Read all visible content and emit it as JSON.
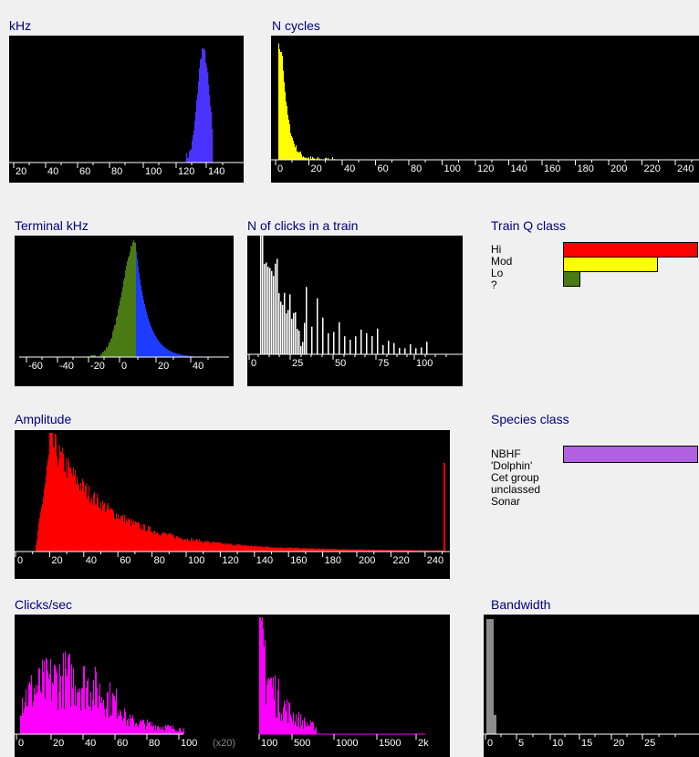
{
  "panels": {
    "khz": {
      "title": "kHz",
      "ticks": [
        "20",
        "40",
        "60",
        "80",
        "100",
        "120",
        "140"
      ]
    },
    "ncycles": {
      "title": "N cycles",
      "ticks": [
        "0",
        "20",
        "40",
        "60",
        "80",
        "100",
        "120",
        "140",
        "160",
        "180",
        "200",
        "220",
        "240"
      ]
    },
    "terminal_khz": {
      "title": "Terminal kHz",
      "ticks": [
        "-60",
        "-40",
        "-20",
        "0",
        "20",
        "40"
      ]
    },
    "nclicks": {
      "title": "N of clicks in a train",
      "ticks": [
        "0",
        "25",
        "50",
        "75",
        "100"
      ]
    },
    "train_q": {
      "title": "Train Q class",
      "labels": [
        "Hi",
        "Mod",
        "Lo",
        "?"
      ]
    },
    "amplitude": {
      "title": "Amplitude",
      "ticks": [
        "0",
        "20",
        "40",
        "60",
        "80",
        "100",
        "120",
        "140",
        "160",
        "180",
        "200",
        "220",
        "240"
      ]
    },
    "species": {
      "title": "Species class",
      "labels": [
        "NBHF",
        "'Dolphin'",
        "Cet group",
        "unclassed",
        "Sonar"
      ]
    },
    "clicks_sec": {
      "title": "Clicks/sec",
      "ticks_left": [
        "0",
        "20",
        "40",
        "60",
        "80",
        "100"
      ],
      "multiplier": "(x20)",
      "ticks_right": [
        "100",
        "500",
        "1000",
        "1500",
        "2k"
      ]
    },
    "bandwidth": {
      "title": "Bandwidth",
      "ticks": [
        "0",
        "5",
        "10",
        "15",
        "20",
        "25"
      ]
    }
  },
  "colors": {
    "panel_bg": "#000000",
    "title_text": "#00007a",
    "ncycles_bar": "#ffff00",
    "terminal_neg": "#4a7a14",
    "terminal_pos": "#1e3cff",
    "nclicks_bar": "#ffffff",
    "amplitude_bar": "#ff0000",
    "clicks_bar": "#ff00ff",
    "bandwidth_bar": "#8c8c8c",
    "q_hi": "#ff0000",
    "q_mod": "#ffff00",
    "q_lo": "#4a7a14",
    "species_nbhf": "#b060e0"
  },
  "chart_data": [
    {
      "type": "bar",
      "panel": "train_q",
      "categories": [
        "Hi",
        "Mod",
        "Lo",
        "?"
      ],
      "values": [
        100,
        70,
        13,
        0
      ]
    },
    {
      "type": "bar",
      "panel": "species",
      "categories": [
        "NBHF",
        "'Dolphin'",
        "Cet group",
        "unclassed",
        "Sonar"
      ],
      "values": [
        100,
        0,
        0,
        0,
        0
      ]
    }
  ]
}
